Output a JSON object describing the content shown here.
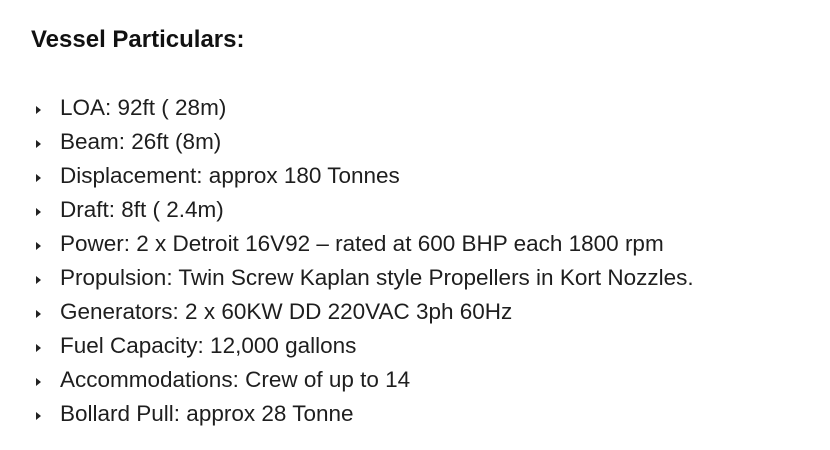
{
  "heading": "Vessel Particulars:",
  "items": [
    "LOA: 92ft ( 28m)",
    "Beam: 26ft (8m)",
    "Displacement: approx 180 Tonnes",
    "Draft: 8ft ( 2.4m)",
    "Power: 2 x Detroit 16V92 – rated at 600 BHP each 1800 rpm",
    "Propulsion: Twin Screw Kaplan style Propellers in Kort Nozzles.",
    "Generators: 2 x 60KW DD 220VAC 3ph 60Hz",
    "Fuel Capacity: 12,000 gallons",
    "Accommodations: Crew of up to 14",
    "Bollard Pull: approx 28 Tonne"
  ]
}
